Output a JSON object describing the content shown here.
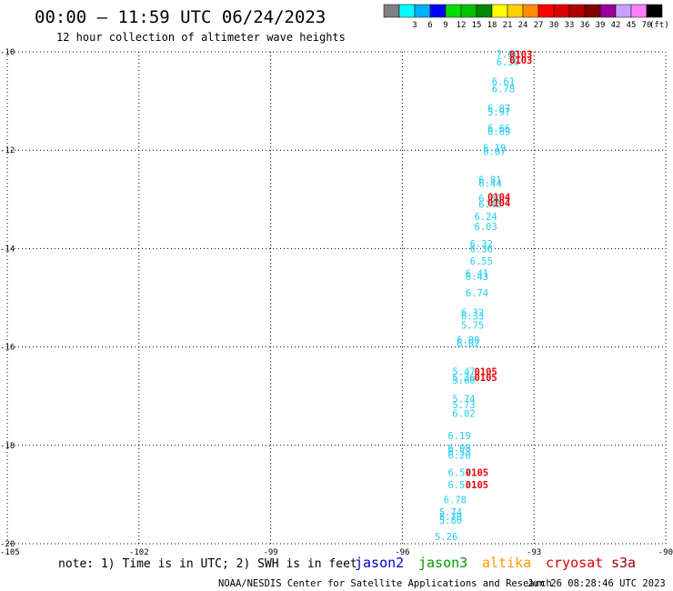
{
  "title": "00:00 — 11:59 UTC 06/24/2023",
  "subtitle": "12 hour collection of altimeter wave heights",
  "colorbar": {
    "labels": [
      "3",
      "6",
      "9",
      "12",
      "15",
      "18",
      "21",
      "24",
      "27",
      "30",
      "33",
      "36",
      "39",
      "42",
      "45",
      "70"
    ],
    "unit": "(ft)",
    "colors": [
      "#808080",
      "#00ffff",
      "#00b0ff",
      "#0000ff",
      "#00e000",
      "#00c000",
      "#008800",
      "#ffff00",
      "#ffd000",
      "#ff8c00",
      "#ff0000",
      "#dd0000",
      "#b00000",
      "#800000",
      "#990099",
      "#c8a0ff",
      "#ff80ff",
      "#000000"
    ]
  },
  "note": "note: 1) Time is in UTC; 2) SWH is in feet",
  "legend": [
    {
      "name": "jason2",
      "color": "#0000cc"
    },
    {
      "name": "jason3",
      "color": "#009900"
    },
    {
      "name": "altika",
      "color": "#ff9900"
    },
    {
      "name": "cryosat",
      "color": "#dd0000"
    },
    {
      "name": "s3a",
      "color": "#990000"
    }
  ],
  "footer": {
    "credit": "NOAA/NESDIS Center for Satellite Applications and Research",
    "timestamp": "Jun 26 08:28:46 UTC 2023"
  },
  "chart_data": {
    "type": "scatter",
    "title": "00:00 — 11:59 UTC 06/24/2023",
    "subtitle": "12 hour collection of altimeter wave heights",
    "xlim": [
      -105,
      -90
    ],
    "ylim": [
      -20,
      -10
    ],
    "x_ticks": [
      -105,
      -102,
      -99,
      -96,
      -93,
      -90
    ],
    "y_ticks": [
      -20,
      -18,
      -16,
      -14,
      -12,
      -10
    ],
    "grid": true,
    "legend_position": "bottom",
    "swh_labels": [
      {
        "lon": -93.6,
        "lat": -10.05,
        "text": "7.00"
      },
      {
        "lon": -93.6,
        "lat": -10.2,
        "text": "6.36"
      },
      {
        "lon": -93.7,
        "lat": -10.6,
        "text": "6.61"
      },
      {
        "lon": -93.7,
        "lat": -10.75,
        "text": "6.78"
      },
      {
        "lon": -93.8,
        "lat": -11.15,
        "text": "6.07"
      },
      {
        "lon": -93.8,
        "lat": -11.22,
        "text": "5.97"
      },
      {
        "lon": -93.8,
        "lat": -11.55,
        "text": "6.66"
      },
      {
        "lon": -93.8,
        "lat": -11.62,
        "text": "6.69"
      },
      {
        "lon": -93.9,
        "lat": -11.95,
        "text": "6.19"
      },
      {
        "lon": -93.9,
        "lat": -12.02,
        "text": "6.07"
      },
      {
        "lon": -94.0,
        "lat": -12.6,
        "text": "6.81"
      },
      {
        "lon": -94.0,
        "lat": -12.67,
        "text": "6.44"
      },
      {
        "lon": -94.0,
        "lat": -12.98,
        "text": "6.39"
      },
      {
        "lon": -94.0,
        "lat": -13.1,
        "text": "6.45"
      },
      {
        "lon": -94.1,
        "lat": -13.35,
        "text": "6.24"
      },
      {
        "lon": -94.1,
        "lat": -13.55,
        "text": "6.03"
      },
      {
        "lon": -94.2,
        "lat": -13.9,
        "text": "6.32"
      },
      {
        "lon": -94.2,
        "lat": -14.0,
        "text": "6.36"
      },
      {
        "lon": -94.2,
        "lat": -14.25,
        "text": "6.55"
      },
      {
        "lon": -94.3,
        "lat": -14.5,
        "text": "6.41"
      },
      {
        "lon": -94.3,
        "lat": -14.57,
        "text": "6.43"
      },
      {
        "lon": -94.3,
        "lat": -14.9,
        "text": "6.74"
      },
      {
        "lon": -94.4,
        "lat": -15.3,
        "text": "6.32"
      },
      {
        "lon": -94.4,
        "lat": -15.37,
        "text": "6.33"
      },
      {
        "lon": -94.4,
        "lat": -15.55,
        "text": "5.75"
      },
      {
        "lon": -94.5,
        "lat": -15.85,
        "text": "6.00"
      },
      {
        "lon": -94.5,
        "lat": -15.92,
        "text": "6.02"
      },
      {
        "lon": -94.6,
        "lat": -16.5,
        "text": "5.47"
      },
      {
        "lon": -94.6,
        "lat": -16.62,
        "text": "5.36"
      },
      {
        "lon": -94.6,
        "lat": -16.67,
        "text": "5.66"
      },
      {
        "lon": -94.6,
        "lat": -17.05,
        "text": "5.74"
      },
      {
        "lon": -94.6,
        "lat": -17.17,
        "text": "5.73"
      },
      {
        "lon": -94.6,
        "lat": -17.35,
        "text": "6.02"
      },
      {
        "lon": -94.7,
        "lat": -17.8,
        "text": "6.19"
      },
      {
        "lon": -94.7,
        "lat": -18.05,
        "text": "6.08"
      },
      {
        "lon": -94.7,
        "lat": -18.12,
        "text": "6.33"
      },
      {
        "lon": -94.7,
        "lat": -18.2,
        "text": "6.20"
      },
      {
        "lon": -94.7,
        "lat": -18.55,
        "text": "6.57"
      },
      {
        "lon": -94.7,
        "lat": -18.8,
        "text": "6.53"
      },
      {
        "lon": -94.8,
        "lat": -19.1,
        "text": "6.78"
      },
      {
        "lon": -94.9,
        "lat": -19.35,
        "text": "5.74"
      },
      {
        "lon": -94.9,
        "lat": -19.45,
        "text": "5.70"
      },
      {
        "lon": -94.9,
        "lat": -19.52,
        "text": "5.80"
      },
      {
        "lon": -95.0,
        "lat": -19.85,
        "text": "5.26"
      }
    ],
    "pass_labels": [
      {
        "lon": -93.3,
        "lat": -10.05,
        "text": "0103"
      },
      {
        "lon": -93.3,
        "lat": -10.17,
        "text": "0103"
      },
      {
        "lon": -93.8,
        "lat": -12.95,
        "text": "0104"
      },
      {
        "lon": -93.8,
        "lat": -13.07,
        "text": "0104"
      },
      {
        "lon": -94.1,
        "lat": -16.5,
        "text": "0105"
      },
      {
        "lon": -94.1,
        "lat": -16.62,
        "text": "0105"
      },
      {
        "lon": -94.3,
        "lat": -18.55,
        "text": "0105"
      },
      {
        "lon": -94.3,
        "lat": -18.8,
        "text": "0105"
      }
    ]
  }
}
